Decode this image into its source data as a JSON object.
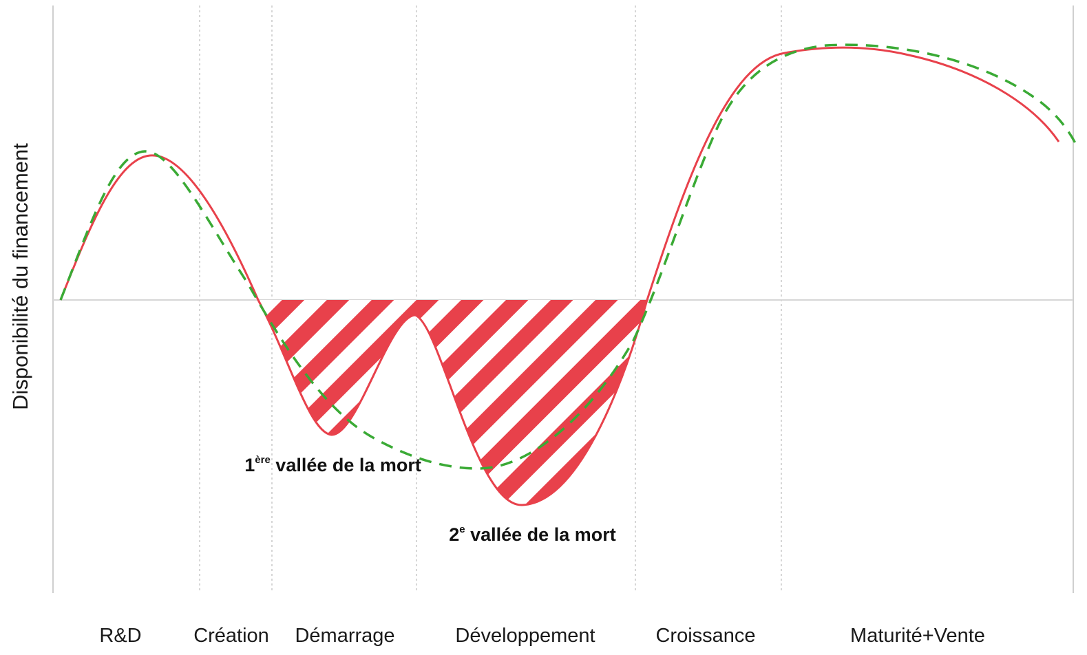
{
  "chart_data": {
    "type": "line",
    "title": "",
    "xlabel": "",
    "ylabel": "Disponibilité du financement",
    "stages": [
      "R&D",
      "Création",
      "Démarrage",
      "Développement",
      "Croissance",
      "Maturité+Vente"
    ],
    "annotations": [
      {
        "number": "1",
        "sup": "ère",
        "text": " vallée de la mort"
      },
      {
        "number": "2",
        "sup": "e",
        "text": " vallée de la mort"
      }
    ],
    "colors": {
      "solid": "#e8414b",
      "dashed": "#3aaa35",
      "hatch": "#e8414b",
      "grid": "#d0d0d0",
      "axis": "#cfcfcf"
    },
    "legend": "none",
    "grid": "vertical dotted stage separators"
  }
}
